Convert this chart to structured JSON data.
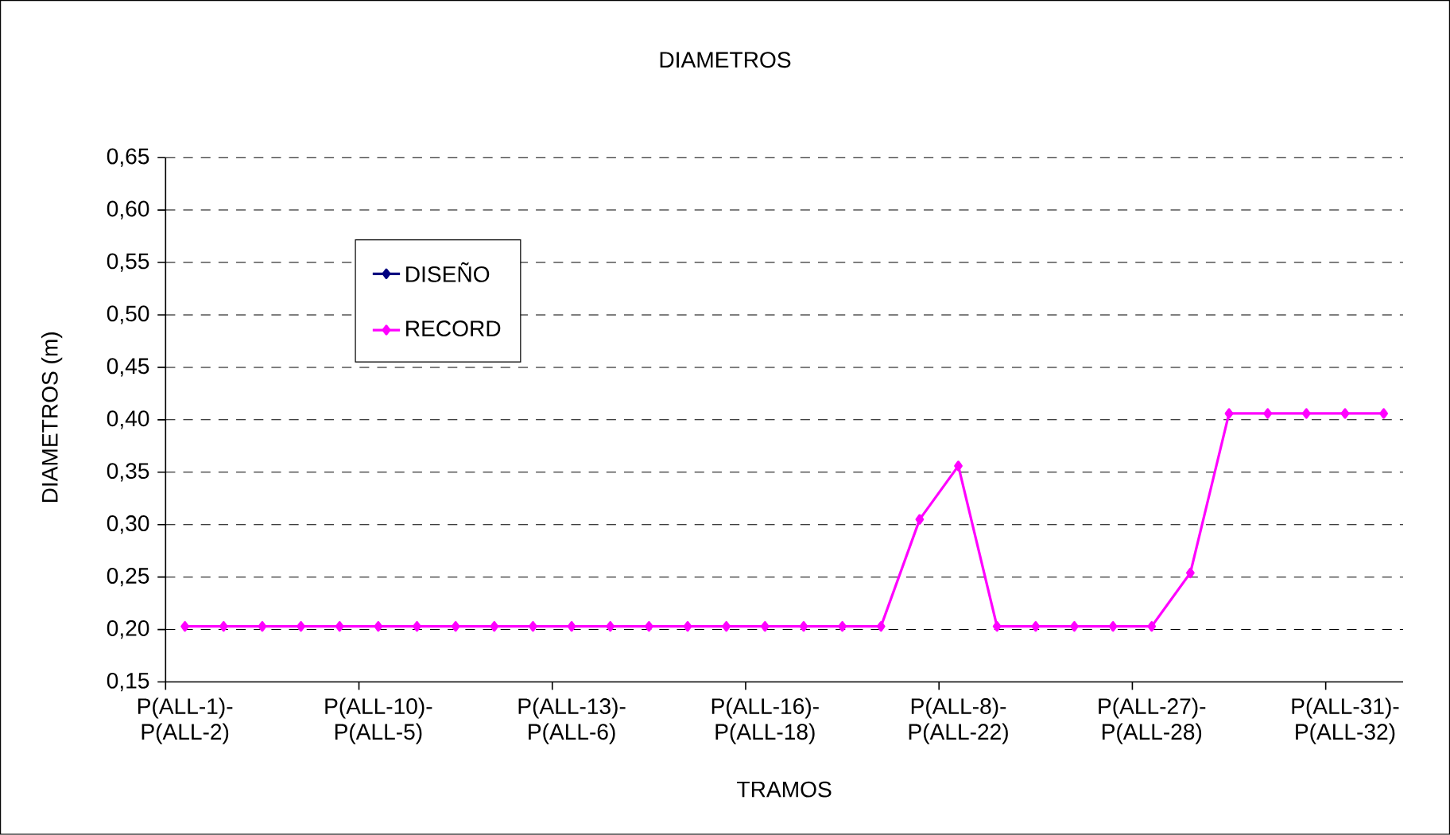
{
  "chart_data": {
    "type": "line",
    "title": "DIAMETROS",
    "xlabel": "TRAMOS",
    "ylabel": "DIAMETROS (m)",
    "categories": [
      "P(ALL-1)-P(ALL-2)",
      null,
      null,
      null,
      null,
      "P(ALL-10)-P(ALL-5)",
      null,
      null,
      null,
      null,
      "P(ALL-13)-P(ALL-6)",
      null,
      null,
      null,
      null,
      "P(ALL-16)-P(ALL-18)",
      null,
      null,
      null,
      null,
      "P(ALL-8)-P(ALL-22)",
      null,
      null,
      null,
      null,
      "P(ALL-27)-P(ALL-28)",
      null,
      null,
      null,
      null,
      "P(ALL-31)-P(ALL-32)",
      null
    ],
    "series": [
      {
        "name": "DISEÑO",
        "color": "#000080",
        "values": [
          null,
          null,
          null,
          null,
          null,
          null,
          null,
          null,
          null,
          null,
          null,
          null,
          null,
          null,
          null,
          null,
          null,
          null,
          null,
          null,
          null,
          null,
          null,
          null,
          null,
          null,
          null,
          null,
          null,
          null,
          null,
          null
        ]
      },
      {
        "name": "RECORD",
        "color": "#ff00ff",
        "values": [
          0.203,
          0.203,
          0.203,
          0.203,
          0.203,
          0.203,
          0.203,
          0.203,
          0.203,
          0.203,
          0.203,
          0.203,
          0.203,
          0.203,
          0.203,
          0.203,
          0.203,
          0.203,
          0.203,
          0.305,
          0.356,
          0.203,
          0.203,
          0.203,
          0.203,
          0.203,
          0.254,
          0.406,
          0.406,
          0.406,
          0.406,
          0.406
        ]
      }
    ],
    "ylim": [
      0.15,
      0.65
    ],
    "yticks": [
      {
        "value": 0.15,
        "label": "0,15"
      },
      {
        "value": 0.2,
        "label": "0,20"
      },
      {
        "value": 0.25,
        "label": "0,25"
      },
      {
        "value": 0.3,
        "label": "0,30"
      },
      {
        "value": 0.35,
        "label": "0,35"
      },
      {
        "value": 0.4,
        "label": "0,40"
      },
      {
        "value": 0.45,
        "label": "0,45"
      },
      {
        "value": 0.5,
        "label": "0,50"
      },
      {
        "value": 0.55,
        "label": "0,55"
      },
      {
        "value": 0.6,
        "label": "0,60"
      },
      {
        "value": 0.65,
        "label": "0,65"
      }
    ],
    "grid": "y",
    "legend": "top left",
    "marker": "diamond",
    "line_style": "solid"
  }
}
